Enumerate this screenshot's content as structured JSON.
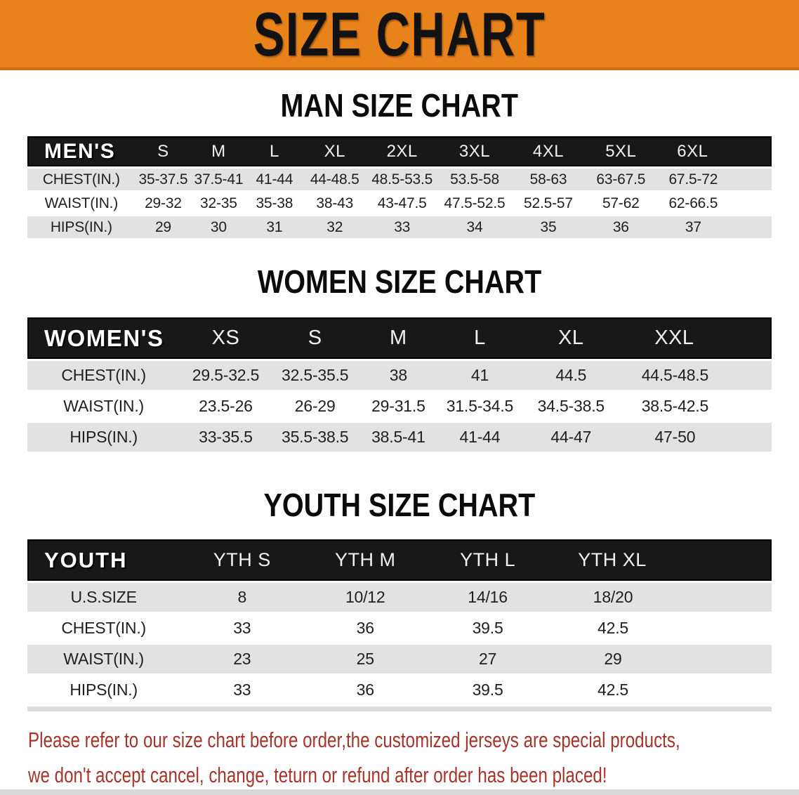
{
  "banner": {
    "title": "SIZE CHART"
  },
  "colors": {
    "banner_bg": "#E8831C",
    "banner_edge": "#CF6D13",
    "table_header_bg": "#181818",
    "row_gray": "#E2E2E2",
    "disclaimer_red": "#A5342B"
  },
  "tables": {
    "men": {
      "section_title": "MAN SIZE CHART",
      "corner_label": "MEN'S",
      "sizes": [
        "S",
        "M",
        "L",
        "XL",
        "2XL",
        "3XL",
        "4XL",
        "5XL",
        "6XL"
      ],
      "rows": [
        {
          "label": "CHEST(IN.)",
          "values": [
            "35-37.5",
            "37.5-41",
            "41-44",
            "44-48.5",
            "48.5-53.5",
            "53.5-58",
            "58-63",
            "63-67.5",
            "67.5-72"
          ]
        },
        {
          "label": "WAIST(IN.)",
          "values": [
            "29-32",
            "32-35",
            "35-38",
            "38-43",
            "43-47.5",
            "47.5-52.5",
            "52.5-57",
            "57-62",
            "62-66.5"
          ]
        },
        {
          "label": "HIPS(IN.)",
          "values": [
            "29",
            "30",
            "31",
            "32",
            "33",
            "34",
            "35",
            "36",
            "37"
          ]
        }
      ]
    },
    "women": {
      "section_title": "WOMEN SIZE CHART",
      "corner_label": "WOMEN'S",
      "sizes": [
        "XS",
        "S",
        "M",
        "L",
        "XL",
        "XXL"
      ],
      "rows": [
        {
          "label": "CHEST(IN.)",
          "values": [
            "29.5-32.5",
            "32.5-35.5",
            "38",
            "41",
            "44.5",
            "44.5-48.5"
          ]
        },
        {
          "label": "WAIST(IN.)",
          "values": [
            "23.5-26",
            "26-29",
            "29-31.5",
            "31.5-34.5",
            "34.5-38.5",
            "38.5-42.5"
          ]
        },
        {
          "label": "HIPS(IN.)",
          "values": [
            "33-35.5",
            "35.5-38.5",
            "38.5-41",
            "41-44",
            "44-47",
            "47-50"
          ]
        }
      ]
    },
    "youth": {
      "section_title": "YOUTH SIZE CHART",
      "corner_label": "YOUTH",
      "sizes": [
        "YTH S",
        "YTH M",
        "YTH L",
        "YTH XL"
      ],
      "rows": [
        {
          "label": "U.S.SIZE",
          "values": [
            "8",
            "10/12",
            "14/16",
            "18/20"
          ]
        },
        {
          "label": "CHEST(IN.)",
          "values": [
            "33",
            "36",
            "39.5",
            "42.5"
          ]
        },
        {
          "label": "WAIST(IN.)",
          "values": [
            "23",
            "25",
            "27",
            "29"
          ]
        },
        {
          "label": "HIPS(IN.)",
          "values": [
            "33",
            "36",
            "39.5",
            "42.5"
          ]
        }
      ]
    }
  },
  "disclaimer": {
    "line1": "Please refer to our size chart before order,the customized jerseys are special products,",
    "line2": "we don't accept cancel, change, teturn or refund after order has been placed!"
  }
}
